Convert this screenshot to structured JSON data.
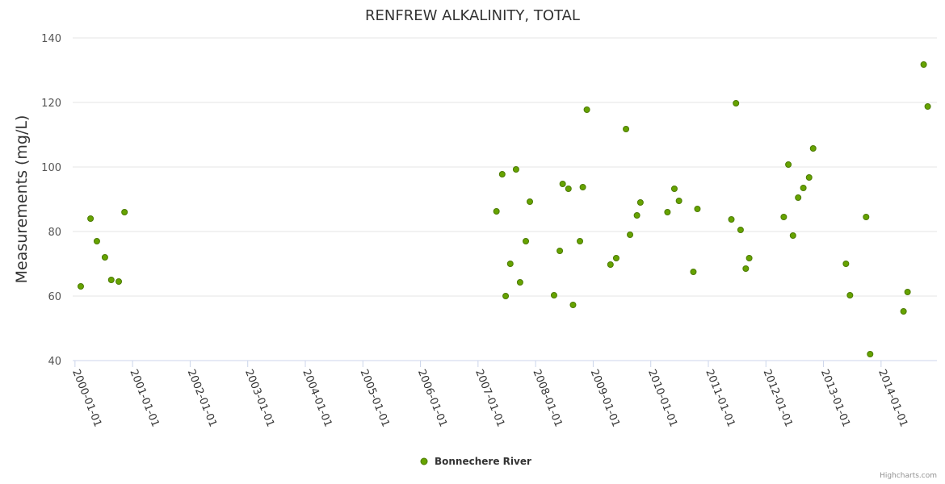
{
  "chart_data": {
    "type": "scatter",
    "title": "RENFREW ALKALINITY, TOTAL",
    "xlabel": "",
    "ylabel": "Measurements (mg/L)",
    "ylim": [
      40,
      140
    ],
    "yticks": [
      40,
      60,
      80,
      100,
      120,
      140
    ],
    "xlim_years": [
      1999.96,
      2014.97
    ],
    "xticks": [
      "2000-01-01",
      "2001-01-01",
      "2002-01-01",
      "2003-01-01",
      "2004-01-01",
      "2005-01-01",
      "2006-01-01",
      "2007-01-01",
      "2008-01-01",
      "2009-01-01",
      "2010-01-01",
      "2011-01-01",
      "2012-01-01",
      "2013-01-01",
      "2014-01-01"
    ],
    "grid": true,
    "legend_position": "bottom-center",
    "series": [
      {
        "name": "Bonnechere River",
        "color": "#66a300",
        "x_decimal_year": [
          2000.1,
          2000.27,
          2000.38,
          2000.52,
          2000.63,
          2000.76,
          2000.86,
          2007.32,
          2007.42,
          2007.48,
          2007.56,
          2007.66,
          2007.73,
          2007.83,
          2007.9,
          2008.32,
          2008.42,
          2008.47,
          2008.57,
          2008.65,
          2008.77,
          2008.82,
          2008.89,
          2009.3,
          2009.4,
          2009.57,
          2009.64,
          2009.76,
          2009.82,
          2010.29,
          2010.41,
          2010.49,
          2010.74,
          2010.81,
          2011.4,
          2011.48,
          2011.56,
          2011.65,
          2011.71,
          2012.31,
          2012.39,
          2012.47,
          2012.56,
          2012.65,
          2012.75,
          2012.82,
          2013.39,
          2013.46,
          2013.74,
          2013.81,
          2014.39,
          2014.46,
          2014.74,
          2014.81
        ],
        "y": [
          63,
          84,
          77,
          72,
          65,
          64.5,
          86,
          86.25,
          97.75,
          60,
          70,
          99.25,
          64.25,
          77,
          89.25,
          60.25,
          74,
          94.75,
          93.25,
          57.25,
          77,
          93.75,
          117.75,
          69.75,
          71.75,
          111.75,
          79,
          85,
          89,
          86,
          93.25,
          89.5,
          67.5,
          87,
          83.75,
          119.75,
          80.5,
          68.5,
          71.75,
          84.5,
          100.75,
          78.75,
          90.5,
          93.5,
          96.75,
          105.75,
          70,
          60.25,
          84.5,
          42,
          55.25,
          61.25,
          131.75,
          118.75
        ]
      }
    ],
    "credit": "Highcharts.com"
  }
}
